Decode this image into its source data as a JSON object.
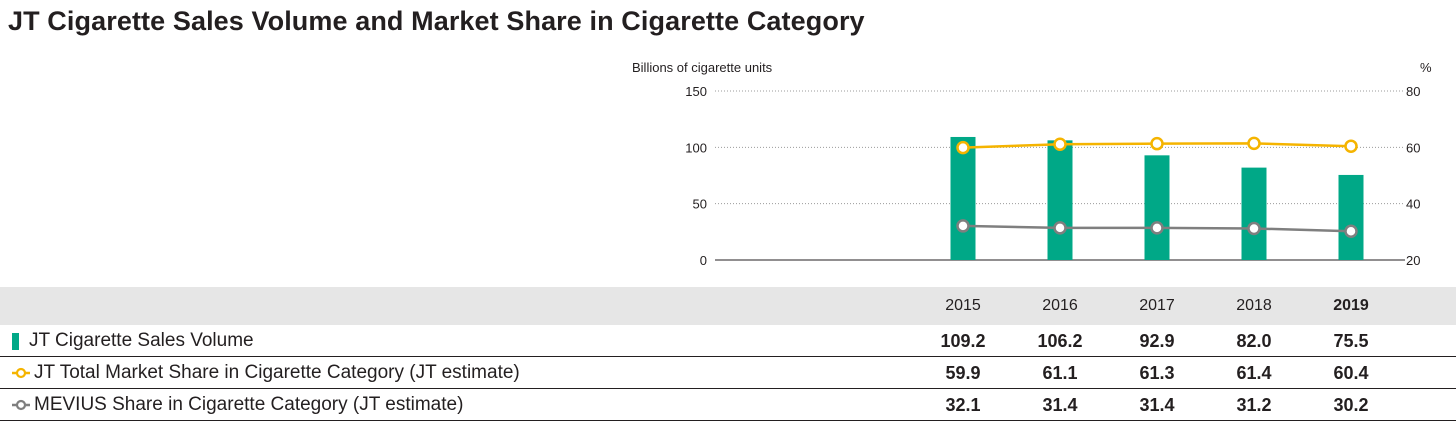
{
  "title": "JT Cigarette Sales Volume and Market Share in Cigarette Category",
  "colors": {
    "bar": "#00a887",
    "total_share": "#f5b400",
    "mevius_share": "#7f7f7f",
    "grid": "#9b9b9b",
    "header_bg": "#e6e6e6"
  },
  "chart_data": {
    "type": "bar",
    "categories": [
      "2015",
      "2016",
      "2017",
      "2018",
      "2019"
    ],
    "highlight_category": "2019",
    "y_left": {
      "label": "Billions of cigarette units",
      "ylim": [
        0,
        150
      ],
      "ticks": [
        "150",
        "100",
        "50",
        "0"
      ]
    },
    "y_right": {
      "label": "%",
      "ylim": [
        20,
        80
      ],
      "ticks": [
        "80",
        "60",
        "40",
        "20"
      ]
    },
    "series": [
      {
        "name": "JT Cigarette Sales Volume",
        "kind": "bar",
        "axis": "left",
        "values": [
          109.2,
          106.2,
          92.9,
          82.0,
          75.5
        ],
        "display": [
          "109.2",
          "106.2",
          "92.9",
          "82.0",
          "75.5"
        ]
      },
      {
        "name": "JT Total Market Share in Cigarette Category (JT estimate)",
        "kind": "line",
        "axis": "right",
        "values": [
          59.9,
          61.1,
          61.3,
          61.4,
          60.4
        ],
        "display": [
          "59.9",
          "61.1",
          "61.3",
          "61.4",
          "60.4"
        ]
      },
      {
        "name": "MEVIUS Share in Cigarette Category (JT estimate)",
        "kind": "line",
        "axis": "right",
        "values": [
          32.1,
          31.4,
          31.4,
          31.2,
          30.2
        ],
        "display": [
          "32.1",
          "31.4",
          "31.4",
          "31.2",
          "30.2"
        ]
      }
    ],
    "grid": "dotted horizontal"
  }
}
